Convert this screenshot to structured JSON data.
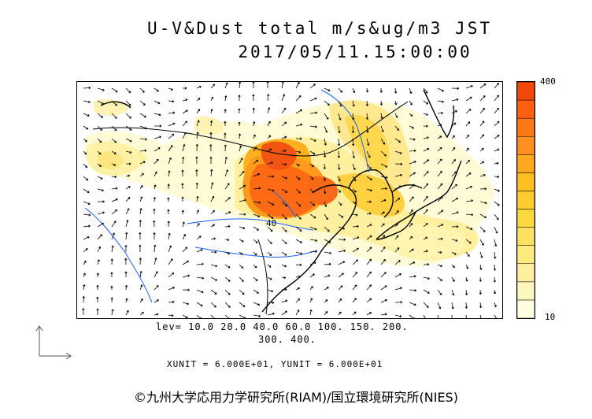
{
  "title": {
    "line1": "U-V&Dust total m/s&ug/m3 JST",
    "line2": "2017/05/11.15:00:00"
  },
  "colorbar": {
    "max_label": "400",
    "min_label": "10",
    "colors": [
      "#ffffe0",
      "#fff7c0",
      "#fff0a0",
      "#ffeb80",
      "#ffe060",
      "#ffd840",
      "#ffcc30",
      "#ffc020",
      "#ffa820",
      "#ff9020",
      "#ff7818",
      "#ff6010",
      "#f04808"
    ]
  },
  "levels": {
    "line1": "lev= 10.0 20.0 40.0 60.0 100. 150. 200.",
    "line2": "300. 400."
  },
  "units": "XUNIT = 6.000E+01, YUNIT = 6.000E+01",
  "contour_label": "40",
  "credit": "©九州大学応用力学研究所(RIAM)/国立環境研究所(NIES)",
  "colors": {
    "coast": "#000000",
    "river": "#1a5fff",
    "grid": "#555555"
  }
}
